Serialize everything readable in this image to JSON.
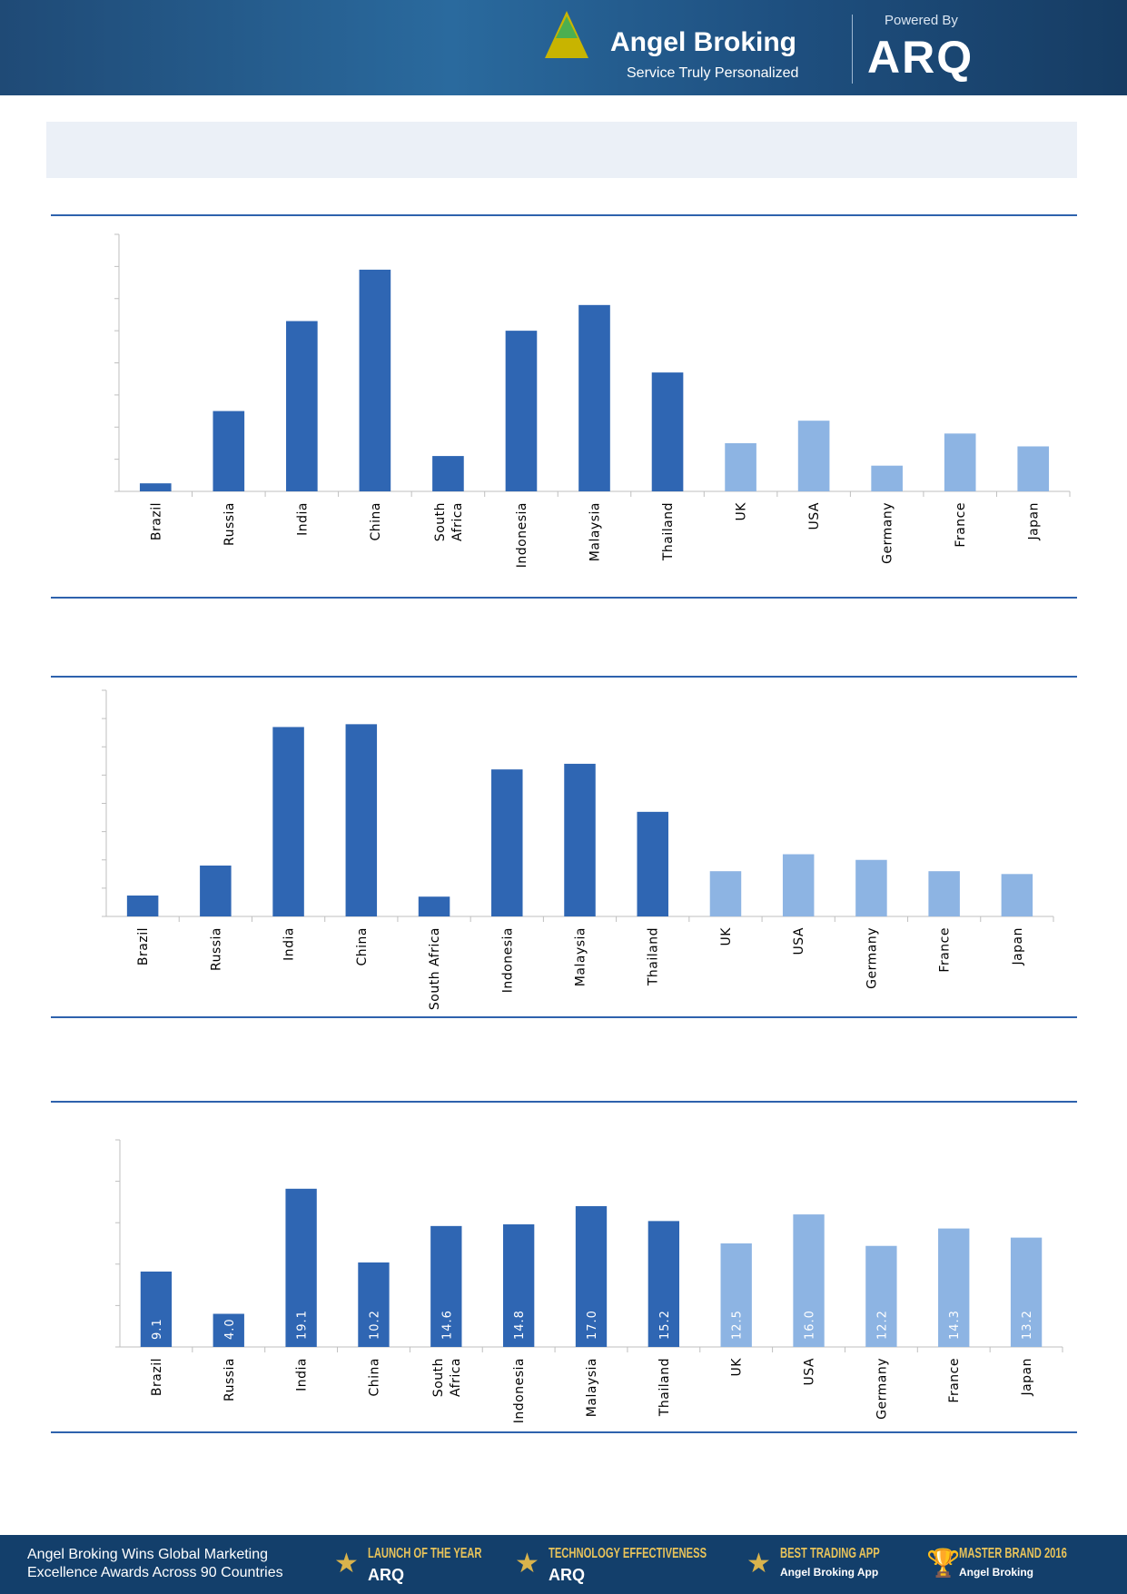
{
  "header": {
    "brand": "Angel Broking",
    "tagline": "Service Truly Personalized",
    "powered_by": "Powered By",
    "product": "ARQ"
  },
  "footer": {
    "text_line1": "Angel Broking Wins Global Marketing",
    "text_line2": "Excellence Awards Across 90 Countries",
    "awards": [
      {
        "title": "LAUNCH OF THE YEAR",
        "sub": "ARQ"
      },
      {
        "title": "TECHNOLOGY EFFECTIVENESS",
        "sub": "ARQ"
      },
      {
        "title": "BEST TRADING APP",
        "sub": "Angel Broking App"
      },
      {
        "title": "MASTER BRAND 2016",
        "sub": "Angel Broking"
      }
    ]
  },
  "colors": {
    "emerging": "#2f66b3",
    "developed": "#8db4e3",
    "rule": "#2e62ad"
  },
  "chart_data": [
    {
      "type": "bar",
      "categories": [
        "Brazil",
        "Russia",
        "India",
        "China",
        "South Africa",
        "Indonesia",
        "Malaysia",
        "Thailand",
        "UK",
        "USA",
        "Germany",
        "France",
        "Japan"
      ],
      "tick_labels": [
        [
          "Brazil"
        ],
        [
          "Russia"
        ],
        [
          "India"
        ],
        [
          "China"
        ],
        [
          "South",
          "Africa"
        ],
        [
          "Indonesia"
        ],
        [
          "Malaysia"
        ],
        [
          "Thailand"
        ],
        [
          "UK"
        ],
        [
          "USA"
        ],
        [
          "Germany"
        ],
        [
          "France"
        ],
        [
          "Japan"
        ]
      ],
      "values": [
        0.25,
        2.5,
        5.3,
        6.9,
        1.1,
        5.0,
        5.8,
        3.7,
        1.5,
        2.2,
        0.8,
        1.8,
        1.4
      ],
      "ylim": [
        0,
        8
      ],
      "yticks": 8,
      "grid": false,
      "data_labels": false
    },
    {
      "type": "bar",
      "categories": [
        "Brazil",
        "Russia",
        "India",
        "China",
        "South Africa",
        "Indonesia",
        "Malaysia",
        "Thailand",
        "UK",
        "USA",
        "Germany",
        "France",
        "Japan"
      ],
      "tick_labels": [
        [
          "Brazil"
        ],
        [
          "Russia"
        ],
        [
          "India"
        ],
        [
          "China"
        ],
        [
          "South Africa"
        ],
        [
          "Indonesia"
        ],
        [
          "Malaysia"
        ],
        [
          "Thailand"
        ],
        [
          "UK"
        ],
        [
          "USA"
        ],
        [
          "Germany"
        ],
        [
          "France"
        ],
        [
          "Japan"
        ]
      ],
      "values": [
        0.74,
        1.8,
        6.7,
        6.8,
        0.7,
        5.2,
        5.4,
        3.7,
        1.6,
        2.2,
        2.0,
        1.6,
        1.5
      ],
      "ylim": [
        0,
        8
      ],
      "yticks": 8,
      "grid": false,
      "data_labels": false
    },
    {
      "type": "bar",
      "categories": [
        "Brazil",
        "Russia",
        "India",
        "China",
        "South Africa",
        "Indonesia",
        "Malaysia",
        "Thailand",
        "UK",
        "USA",
        "Germany",
        "France",
        "Japan"
      ],
      "tick_labels": [
        [
          "Brazil"
        ],
        [
          "Russia"
        ],
        [
          "India"
        ],
        [
          "China"
        ],
        [
          "South",
          "Africa"
        ],
        [
          "Indonesia"
        ],
        [
          "Malaysia"
        ],
        [
          "Thailand"
        ],
        [
          "UK"
        ],
        [
          "USA"
        ],
        [
          "Germany"
        ],
        [
          "France"
        ],
        [
          "Japan"
        ]
      ],
      "values": [
        9.1,
        4.0,
        19.1,
        10.2,
        14.6,
        14.8,
        17.0,
        15.2,
        12.5,
        16.0,
        12.2,
        14.3,
        13.2
      ],
      "labels": [
        "9.1",
        "4.0",
        "19.1",
        "10.2",
        "14.6",
        "14.8",
        "17.0",
        "15.2",
        "12.5",
        "16.0",
        "12.2",
        "14.3",
        "13.2"
      ],
      "ylim": [
        0,
        25
      ],
      "yticks": 5,
      "grid": false,
      "data_labels": true
    }
  ]
}
